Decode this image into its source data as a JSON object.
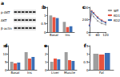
{
  "blot": {
    "title": "a",
    "rows": [
      "p-AKT",
      "AKT",
      "β-actin"
    ],
    "lanes": 6
  },
  "chart_data": [
    {
      "type": "bar",
      "title": "b",
      "categories": [
        "Basal",
        "Ins"
      ],
      "series": [
        {
          "color": "#9e9e9e",
          "values": [
            1.0,
            0.62
          ]
        },
        {
          "color": "#e8533f",
          "values": [
            0.9,
            0.3
          ]
        },
        {
          "color": "#3b6fb6",
          "values": [
            0.85,
            0.35
          ]
        }
      ],
      "ylim": [
        0,
        1.5
      ],
      "yticks": [
        0,
        0.5,
        1,
        1.5
      ],
      "grid": false
    },
    {
      "type": "line",
      "title": "c",
      "x": [
        0,
        15,
        30,
        60,
        90,
        120
      ],
      "series": [
        {
          "name": "WT",
          "color": "#9e9e9e",
          "values": [
            100,
            300,
            250,
            180,
            140,
            120
          ]
        },
        {
          "name": "KO1",
          "color": "#e8533f",
          "values": [
            110,
            340,
            310,
            240,
            190,
            160
          ]
        },
        {
          "name": "KO2",
          "color": "#3b6fb6",
          "values": [
            105,
            330,
            300,
            230,
            180,
            150
          ]
        }
      ],
      "xlim": [
        0,
        120
      ],
      "xticks": [
        0,
        60,
        120
      ],
      "ylim": [
        0,
        400
      ],
      "yticks": [
        0,
        200,
        400
      ],
      "legend": "right",
      "marker": "circle",
      "grid": false
    },
    {
      "type": "bar",
      "title": "d",
      "categories": [
        "Basal",
        "Ins"
      ],
      "series": [
        {
          "color": "#9e9e9e",
          "values": [
            5,
            11
          ]
        },
        {
          "color": "#e8533f",
          "values": [
            4,
            7
          ]
        },
        {
          "color": "#3b6fb6",
          "values": [
            4.5,
            8
          ]
        }
      ],
      "ylim": [
        0,
        15
      ],
      "yticks": [
        0,
        5,
        10,
        15
      ],
      "grid": false
    },
    {
      "type": "bar",
      "title": "e",
      "categories": [
        "Liver",
        "Muscle"
      ],
      "series": [
        {
          "color": "#9e9e9e",
          "values": [
            1,
            2.2
          ]
        },
        {
          "color": "#e8533f",
          "values": [
            1.4,
            1.2
          ]
        },
        {
          "color": "#3b6fb6",
          "values": [
            1.3,
            1.1
          ]
        }
      ],
      "ylim": [
        0,
        3
      ],
      "yticks": [
        0,
        1,
        2,
        3
      ],
      "grid": false
    },
    {
      "type": "bar",
      "title": "f",
      "categories": [
        "Fat"
      ],
      "series": [
        {
          "color": "#9e9e9e",
          "values": [
            1
          ]
        },
        {
          "color": "#e8533f",
          "values": [
            0.95
          ]
        },
        {
          "color": "#3b6fb6",
          "values": [
            1.05
          ]
        }
      ],
      "ylim": [
        0,
        1.5
      ],
      "yticks": [
        0,
        0.5,
        1,
        1.5
      ],
      "grid": false
    }
  ]
}
